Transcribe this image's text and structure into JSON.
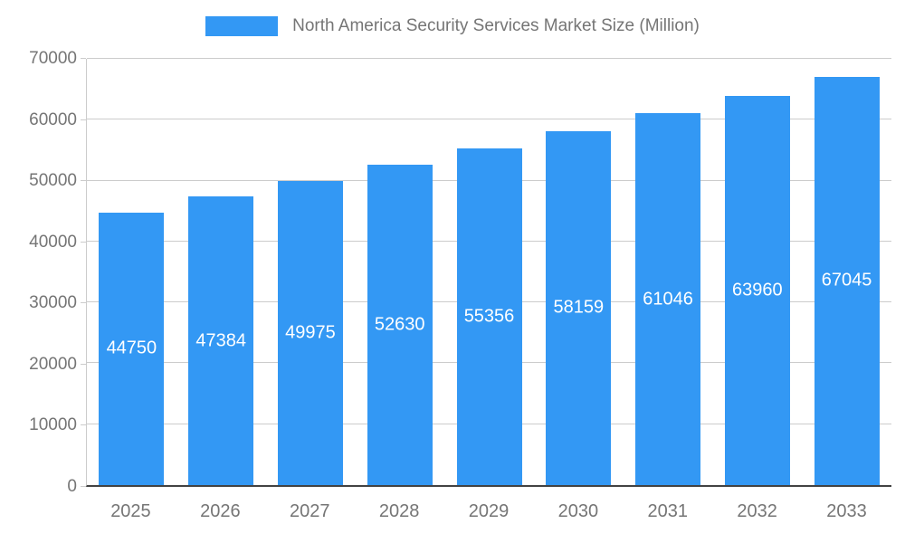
{
  "legend": {
    "title": "North America Security Services Market Size (Million)"
  },
  "chart_data": {
    "type": "bar",
    "title": "North America Security Services Market Size (Million)",
    "categories": [
      "2025",
      "2026",
      "2027",
      "2028",
      "2029",
      "2030",
      "2031",
      "2032",
      "2033"
    ],
    "values": [
      44750,
      47384,
      49975,
      52630,
      55356,
      58159,
      61046,
      63960,
      67045
    ],
    "xlabel": "",
    "ylabel": "",
    "ylim": [
      0,
      70000
    ],
    "ytick_step": 10000,
    "ytick_labels": [
      "0",
      "10000",
      "20000",
      "30000",
      "40000",
      "50000",
      "60000",
      "70000"
    ],
    "grid": true,
    "legend_position": "top",
    "bar_color": "#3398F4",
    "value_label_color": "#ffffff",
    "axis_text_color": "#757575",
    "grid_color": "#cccccc",
    "baseline_color": "#424242",
    "background_color": "#ffffff"
  }
}
